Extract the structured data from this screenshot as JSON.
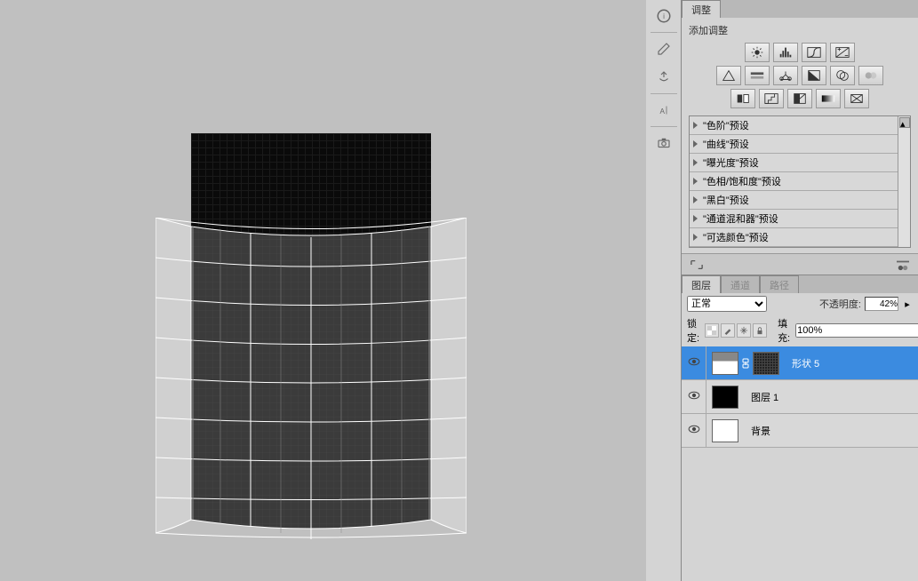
{
  "adjustments_panel": {
    "tab_label": "调整",
    "add_label": "添加调整",
    "presets": [
      "\"色阶\"预设",
      "\"曲线\"预设",
      "\"曝光度\"预设",
      "\"色相/饱和度\"预设",
      "\"黑白\"预设",
      "\"通道混和器\"预设",
      "\"可选颜色\"预设"
    ]
  },
  "layers_panel": {
    "tabs": {
      "layers": "图层",
      "channels": "通道",
      "paths": "路径"
    },
    "blend_mode": "正常",
    "opacity_label": "不透明度:",
    "opacity_value": "42%",
    "lock_label": "锁定:",
    "fill_label": "填充:",
    "fill_value": "100%",
    "layers": [
      {
        "name": "形状 5",
        "selected": true,
        "thumbs": [
          "shape1",
          "pattern"
        ]
      },
      {
        "name": "图层 1",
        "selected": false,
        "thumbs": [
          "dark"
        ]
      },
      {
        "name": "背景",
        "selected": false,
        "thumbs": [
          "white"
        ]
      }
    ]
  },
  "canvas": {
    "warped_grid": {
      "cols": 8,
      "rows": 8,
      "outer_fill": "#d0d0d0",
      "inner_fill": "#3b3b3b",
      "stroke": "#ffffff",
      "grid_stroke": "#555555"
    }
  }
}
